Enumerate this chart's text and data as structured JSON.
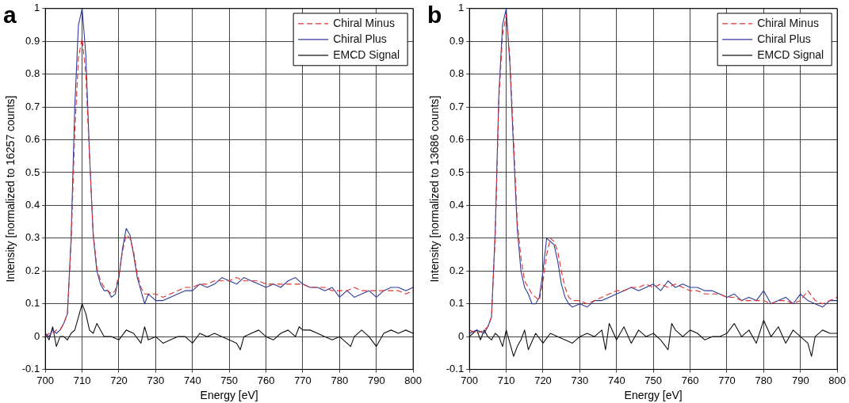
{
  "chart_data": [
    {
      "type": "line",
      "title": "a",
      "xlabel": "Energy [eV]",
      "ylabel": "Intensity [normalized to 16257 counts]",
      "xlim": [
        700,
        800
      ],
      "xticks": [
        700,
        710,
        720,
        730,
        740,
        750,
        760,
        770,
        780,
        790,
        800
      ],
      "ylim": [
        -0.1,
        1
      ],
      "yticks": [
        -0.1,
        0,
        0.1,
        0.2,
        0.3,
        0.4,
        0.5,
        0.6,
        0.7,
        0.8,
        0.9,
        1
      ],
      "grid": true,
      "legend": "top right",
      "marker": "none",
      "series": [
        {
          "name": "Chiral Minus",
          "color": "#e03030",
          "line_style": "dashed",
          "x": [
            700,
            701,
            702,
            703,
            704,
            705,
            706,
            707,
            708,
            709,
            710,
            711,
            712,
            713,
            714,
            715,
            716,
            717,
            718,
            719,
            720,
            721,
            722,
            723,
            724,
            725,
            726,
            727,
            728,
            730,
            732,
            734,
            736,
            738,
            740,
            742,
            744,
            746,
            748,
            750,
            752,
            754,
            756,
            758,
            760,
            762,
            764,
            766,
            768,
            770,
            772,
            774,
            776,
            778,
            780,
            782,
            784,
            786,
            788,
            790,
            792,
            794,
            796,
            798,
            800
          ],
          "values": [
            0.0,
            0.01,
            0.01,
            0.02,
            0.02,
            0.04,
            0.07,
            0.28,
            0.62,
            0.85,
            0.91,
            0.8,
            0.55,
            0.32,
            0.21,
            0.17,
            0.15,
            0.14,
            0.13,
            0.14,
            0.19,
            0.26,
            0.31,
            0.3,
            0.26,
            0.19,
            0.15,
            0.13,
            0.13,
            0.13,
            0.12,
            0.13,
            0.14,
            0.15,
            0.15,
            0.16,
            0.16,
            0.17,
            0.17,
            0.17,
            0.18,
            0.17,
            0.17,
            0.17,
            0.16,
            0.16,
            0.16,
            0.16,
            0.16,
            0.16,
            0.15,
            0.15,
            0.15,
            0.14,
            0.14,
            0.14,
            0.15,
            0.14,
            0.14,
            0.14,
            0.14,
            0.14,
            0.14,
            0.13,
            0.14
          ]
        },
        {
          "name": "Chiral Plus",
          "color": "#2e3a9a",
          "line_style": "solid",
          "x": [
            700,
            701,
            702,
            703,
            704,
            705,
            706,
            707,
            708,
            709,
            710,
            711,
            712,
            713,
            714,
            715,
            716,
            717,
            718,
            719,
            720,
            721,
            722,
            723,
            724,
            725,
            726,
            727,
            728,
            730,
            732,
            734,
            736,
            738,
            740,
            742,
            744,
            746,
            748,
            750,
            752,
            754,
            756,
            758,
            760,
            762,
            764,
            766,
            768,
            770,
            772,
            774,
            776,
            778,
            780,
            782,
            784,
            786,
            788,
            790,
            792,
            794,
            796,
            798,
            800
          ],
          "values": [
            0.01,
            0.0,
            0.02,
            0.01,
            0.02,
            0.04,
            0.07,
            0.3,
            0.7,
            0.95,
            1.0,
            0.86,
            0.56,
            0.31,
            0.2,
            0.16,
            0.14,
            0.14,
            0.12,
            0.13,
            0.18,
            0.27,
            0.33,
            0.31,
            0.25,
            0.18,
            0.14,
            0.1,
            0.13,
            0.11,
            0.11,
            0.12,
            0.13,
            0.14,
            0.14,
            0.16,
            0.15,
            0.16,
            0.18,
            0.17,
            0.16,
            0.18,
            0.17,
            0.16,
            0.15,
            0.16,
            0.15,
            0.17,
            0.18,
            0.16,
            0.15,
            0.15,
            0.14,
            0.15,
            0.12,
            0.14,
            0.12,
            0.13,
            0.14,
            0.12,
            0.14,
            0.15,
            0.15,
            0.14,
            0.15
          ]
        },
        {
          "name": "EMCD Signal",
          "color": "#111111",
          "line_style": "solid",
          "x": [
            700,
            701,
            702,
            703,
            704,
            705,
            706,
            707,
            708,
            709,
            710,
            711,
            712,
            713,
            714,
            716,
            718,
            720,
            722,
            724,
            726,
            727,
            728,
            730,
            732,
            734,
            736,
            738,
            740,
            742,
            744,
            746,
            748,
            750,
            752,
            753,
            754,
            756,
            758,
            760,
            762,
            764,
            766,
            768,
            769,
            770,
            772,
            774,
            776,
            778,
            780,
            782,
            783,
            784,
            786,
            788,
            790,
            792,
            794,
            796,
            798,
            800
          ],
          "values": [
            0.01,
            -0.01,
            0.03,
            -0.03,
            0.0,
            0.0,
            -0.01,
            0.01,
            0.02,
            0.06,
            0.1,
            0.07,
            0.02,
            0.01,
            0.04,
            0.0,
            0.0,
            -0.01,
            0.02,
            0.01,
            -0.02,
            0.03,
            -0.01,
            0.0,
            -0.02,
            -0.01,
            0.0,
            0.0,
            -0.02,
            0.01,
            0.0,
            0.01,
            0.0,
            -0.01,
            -0.02,
            -0.04,
            0.0,
            0.01,
            0.02,
            0.0,
            -0.01,
            0.01,
            0.02,
            0.0,
            0.03,
            0.02,
            0.02,
            0.01,
            0.0,
            -0.01,
            0.0,
            -0.02,
            -0.03,
            0.0,
            0.02,
            0.0,
            -0.03,
            0.01,
            0.02,
            0.01,
            0.02,
            0.01
          ]
        }
      ]
    },
    {
      "type": "line",
      "title": "b",
      "xlabel": "Energy [eV]",
      "ylabel": "Intensity [normalized to 13686 counts]",
      "xlim": [
        700,
        800
      ],
      "xticks": [
        700,
        710,
        720,
        730,
        740,
        750,
        760,
        770,
        780,
        790,
        800
      ],
      "ylim": [
        -0.1,
        1
      ],
      "yticks": [
        -0.1,
        0,
        0.1,
        0.2,
        0.3,
        0.4,
        0.5,
        0.6,
        0.7,
        0.8,
        0.9,
        1
      ],
      "grid": true,
      "legend": "top right",
      "marker": "none",
      "series": [
        {
          "name": "Chiral Minus",
          "color": "#e03030",
          "line_style": "dashed",
          "x": [
            700,
            702,
            704,
            705,
            706,
            707,
            708,
            709,
            710,
            711,
            712,
            713,
            714,
            715,
            716,
            717,
            718,
            719,
            720,
            721,
            722,
            723,
            724,
            725,
            726,
            727,
            728,
            730,
            732,
            734,
            736,
            738,
            740,
            742,
            744,
            746,
            748,
            750,
            752,
            754,
            756,
            758,
            760,
            762,
            764,
            766,
            768,
            770,
            772,
            774,
            776,
            778,
            780,
            782,
            784,
            786,
            788,
            790,
            792,
            794,
            796,
            798,
            800
          ],
          "values": [
            0.02,
            0.01,
            0.02,
            0.03,
            0.06,
            0.3,
            0.72,
            0.92,
            0.98,
            0.85,
            0.6,
            0.35,
            0.24,
            0.17,
            0.15,
            0.13,
            0.12,
            0.11,
            0.17,
            0.25,
            0.3,
            0.29,
            0.26,
            0.2,
            0.15,
            0.12,
            0.11,
            0.11,
            0.1,
            0.11,
            0.12,
            0.13,
            0.14,
            0.14,
            0.15,
            0.15,
            0.16,
            0.15,
            0.16,
            0.15,
            0.16,
            0.15,
            0.14,
            0.14,
            0.13,
            0.13,
            0.13,
            0.12,
            0.12,
            0.11,
            0.11,
            0.11,
            0.11,
            0.1,
            0.11,
            0.11,
            0.1,
            0.11,
            0.14,
            0.11,
            0.1,
            0.11,
            0.12
          ]
        },
        {
          "name": "Chiral Plus",
          "color": "#2e3a9a",
          "line_style": "solid",
          "x": [
            700,
            702,
            704,
            705,
            706,
            707,
            708,
            709,
            710,
            711,
            712,
            713,
            714,
            715,
            716,
            717,
            718,
            719,
            720,
            721,
            722,
            723,
            724,
            725,
            726,
            727,
            728,
            730,
            732,
            734,
            736,
            738,
            740,
            742,
            744,
            746,
            748,
            750,
            752,
            754,
            756,
            758,
            760,
            762,
            764,
            766,
            768,
            770,
            772,
            774,
            776,
            778,
            780,
            782,
            784,
            786,
            788,
            790,
            792,
            794,
            796,
            798,
            800
          ],
          "values": [
            0.01,
            0.02,
            0.01,
            0.03,
            0.06,
            0.32,
            0.74,
            0.95,
            1.0,
            0.83,
            0.57,
            0.33,
            0.2,
            0.15,
            0.13,
            0.1,
            0.1,
            0.12,
            0.2,
            0.3,
            0.29,
            0.28,
            0.23,
            0.16,
            0.12,
            0.1,
            0.09,
            0.1,
            0.09,
            0.11,
            0.11,
            0.12,
            0.13,
            0.14,
            0.15,
            0.14,
            0.15,
            0.16,
            0.14,
            0.17,
            0.15,
            0.16,
            0.15,
            0.15,
            0.14,
            0.14,
            0.13,
            0.12,
            0.13,
            0.11,
            0.12,
            0.11,
            0.14,
            0.1,
            0.11,
            0.12,
            0.1,
            0.13,
            0.11,
            0.1,
            0.09,
            0.11,
            0.11
          ]
        },
        {
          "name": "EMCD Signal",
          "color": "#111111",
          "line_style": "solid",
          "x": [
            700,
            702,
            703,
            704,
            705,
            706,
            707,
            708,
            709,
            710,
            711,
            712,
            713,
            714,
            715,
            716,
            718,
            720,
            722,
            724,
            726,
            728,
            730,
            732,
            734,
            736,
            737,
            738,
            740,
            742,
            744,
            746,
            748,
            750,
            752,
            754,
            755,
            756,
            758,
            760,
            762,
            764,
            766,
            768,
            770,
            772,
            774,
            776,
            778,
            780,
            782,
            784,
            786,
            788,
            790,
            792,
            793,
            794,
            796,
            798,
            800
          ],
          "values": [
            0.0,
            0.02,
            -0.01,
            0.02,
            0.0,
            -0.01,
            0.01,
            0.0,
            -0.03,
            0.02,
            -0.02,
            -0.06,
            -0.03,
            -0.01,
            0.02,
            -0.04,
            0.01,
            -0.02,
            0.01,
            0.0,
            -0.01,
            -0.02,
            0.0,
            0.01,
            0.0,
            0.02,
            -0.04,
            0.04,
            -0.01,
            0.03,
            -0.02,
            0.02,
            0.0,
            0.01,
            -0.01,
            -0.04,
            0.04,
            0.02,
            0.0,
            0.02,
            0.01,
            -0.01,
            0.0,
            0.0,
            0.01,
            0.04,
            0.0,
            0.02,
            -0.02,
            0.05,
            0.0,
            0.03,
            -0.02,
            0.02,
            0.0,
            -0.02,
            -0.06,
            0.0,
            0.02,
            0.01,
            0.01
          ]
        }
      ]
    }
  ]
}
